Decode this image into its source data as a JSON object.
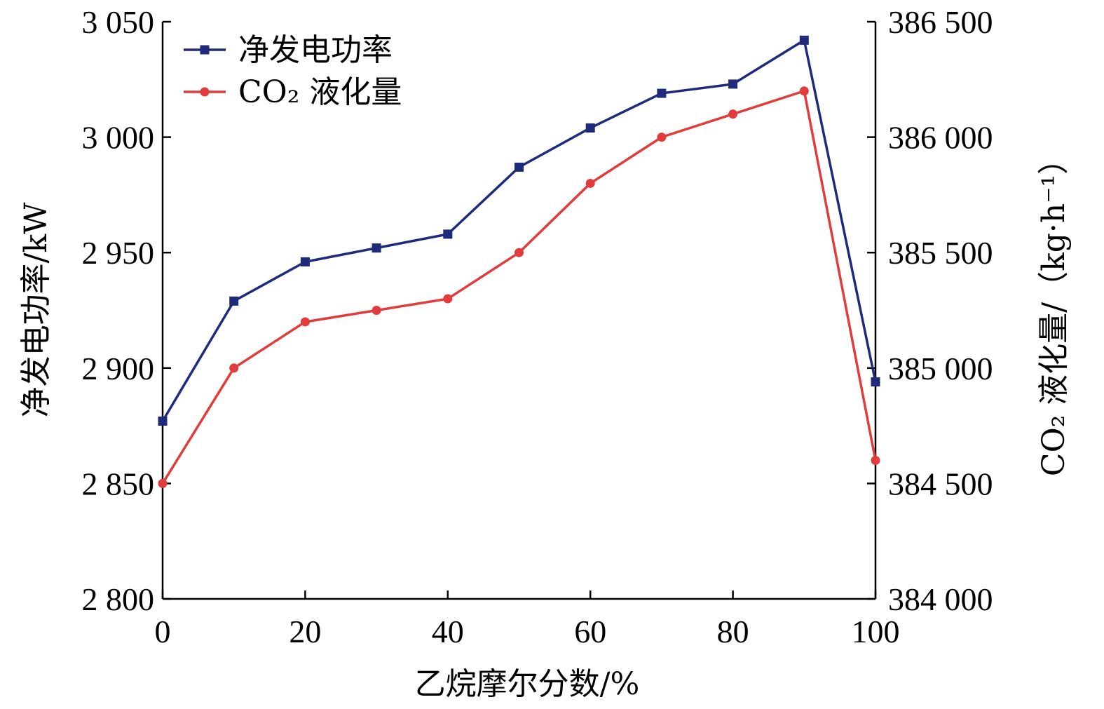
{
  "chart_data": {
    "type": "line",
    "x": [
      0,
      10,
      20,
      30,
      40,
      50,
      60,
      70,
      80,
      90,
      100
    ],
    "xlabel": "乙烷摩尔分数/%",
    "xlim": [
      0,
      100
    ],
    "xticks": [
      0,
      20,
      40,
      60,
      80,
      100
    ],
    "xtick_labels": [
      "0",
      "20",
      "40",
      "60",
      "80",
      "100"
    ],
    "y_left": {
      "label": "净发电功率/kW",
      "lim": [
        2800,
        3050
      ],
      "ticks": [
        2800,
        2850,
        2900,
        2950,
        3000,
        3050
      ],
      "tick_labels": [
        "2 800",
        "2 850",
        "2 900",
        "2 950",
        "3 000",
        "3 050"
      ]
    },
    "y_right": {
      "label": "CO₂ 液化量/（kg·h⁻¹）",
      "lim": [
        384000,
        386500
      ],
      "ticks": [
        384000,
        384500,
        385000,
        385500,
        386000,
        386500
      ],
      "tick_labels": [
        "384 000",
        "384 500",
        "385 000",
        "385 500",
        "386 000",
        "386 500"
      ]
    },
    "series": [
      {
        "name": "净发电功率",
        "axis": "left",
        "marker": "square",
        "color": "#1f2a7a",
        "values": [
          2877,
          2929,
          2946,
          2952,
          2958,
          2987,
          3004,
          3019,
          3023,
          3042,
          2894
        ]
      },
      {
        "name": "CO₂ 液化量",
        "axis": "right",
        "marker": "circle",
        "color": "#e23b3b",
        "values": [
          384500,
          385000,
          385200,
          385250,
          385300,
          385500,
          385800,
          386000,
          386100,
          386200,
          384600
        ]
      }
    ],
    "legend": "top-left",
    "grid": false
  }
}
